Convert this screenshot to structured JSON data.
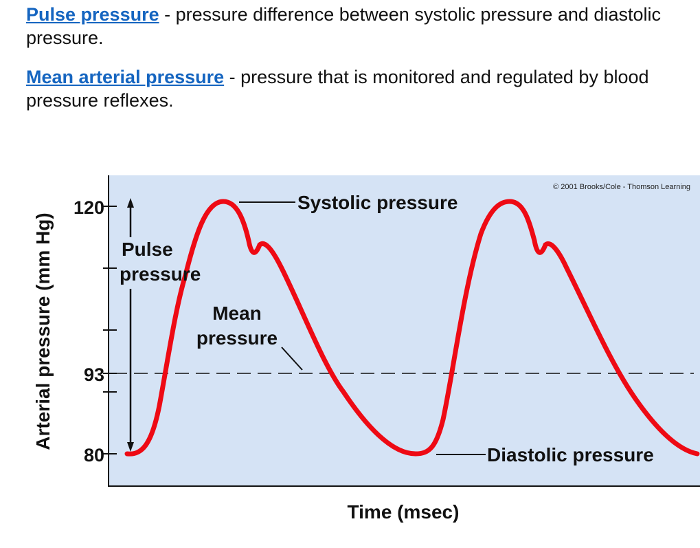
{
  "definitions": [
    {
      "term": "Pulse pressure",
      "text": " - pressure difference between systolic pressure and diastolic pressure."
    },
    {
      "term": "Mean arterial pressure",
      "text": " - pressure that is monitored and regulated by blood pressure reflexes."
    }
  ],
  "chart_data": {
    "type": "line",
    "xlabel": "Time (msec)",
    "ylabel": "Arterial pressure (mm Hg)",
    "ylim": [
      75,
      125
    ],
    "yticks": [
      80,
      90,
      93,
      100,
      110,
      120
    ],
    "ytick_labels": [
      "120",
      "93",
      "80"
    ],
    "systolic": 120,
    "diastolic": 80,
    "mean": 93,
    "annotations": {
      "systolic": "Systolic pressure",
      "diastolic": "Diastolic pressure",
      "mean_line1": "Mean",
      "mean_line2": "pressure",
      "pulse_line1": "Pulse",
      "pulse_line2": "pressure"
    },
    "copyright": "© 2001 Brooks/Cole - Thomson Learning",
    "colors": {
      "background": "#d5e3f5",
      "waveform": "#ee0a14"
    },
    "grid": false
  }
}
